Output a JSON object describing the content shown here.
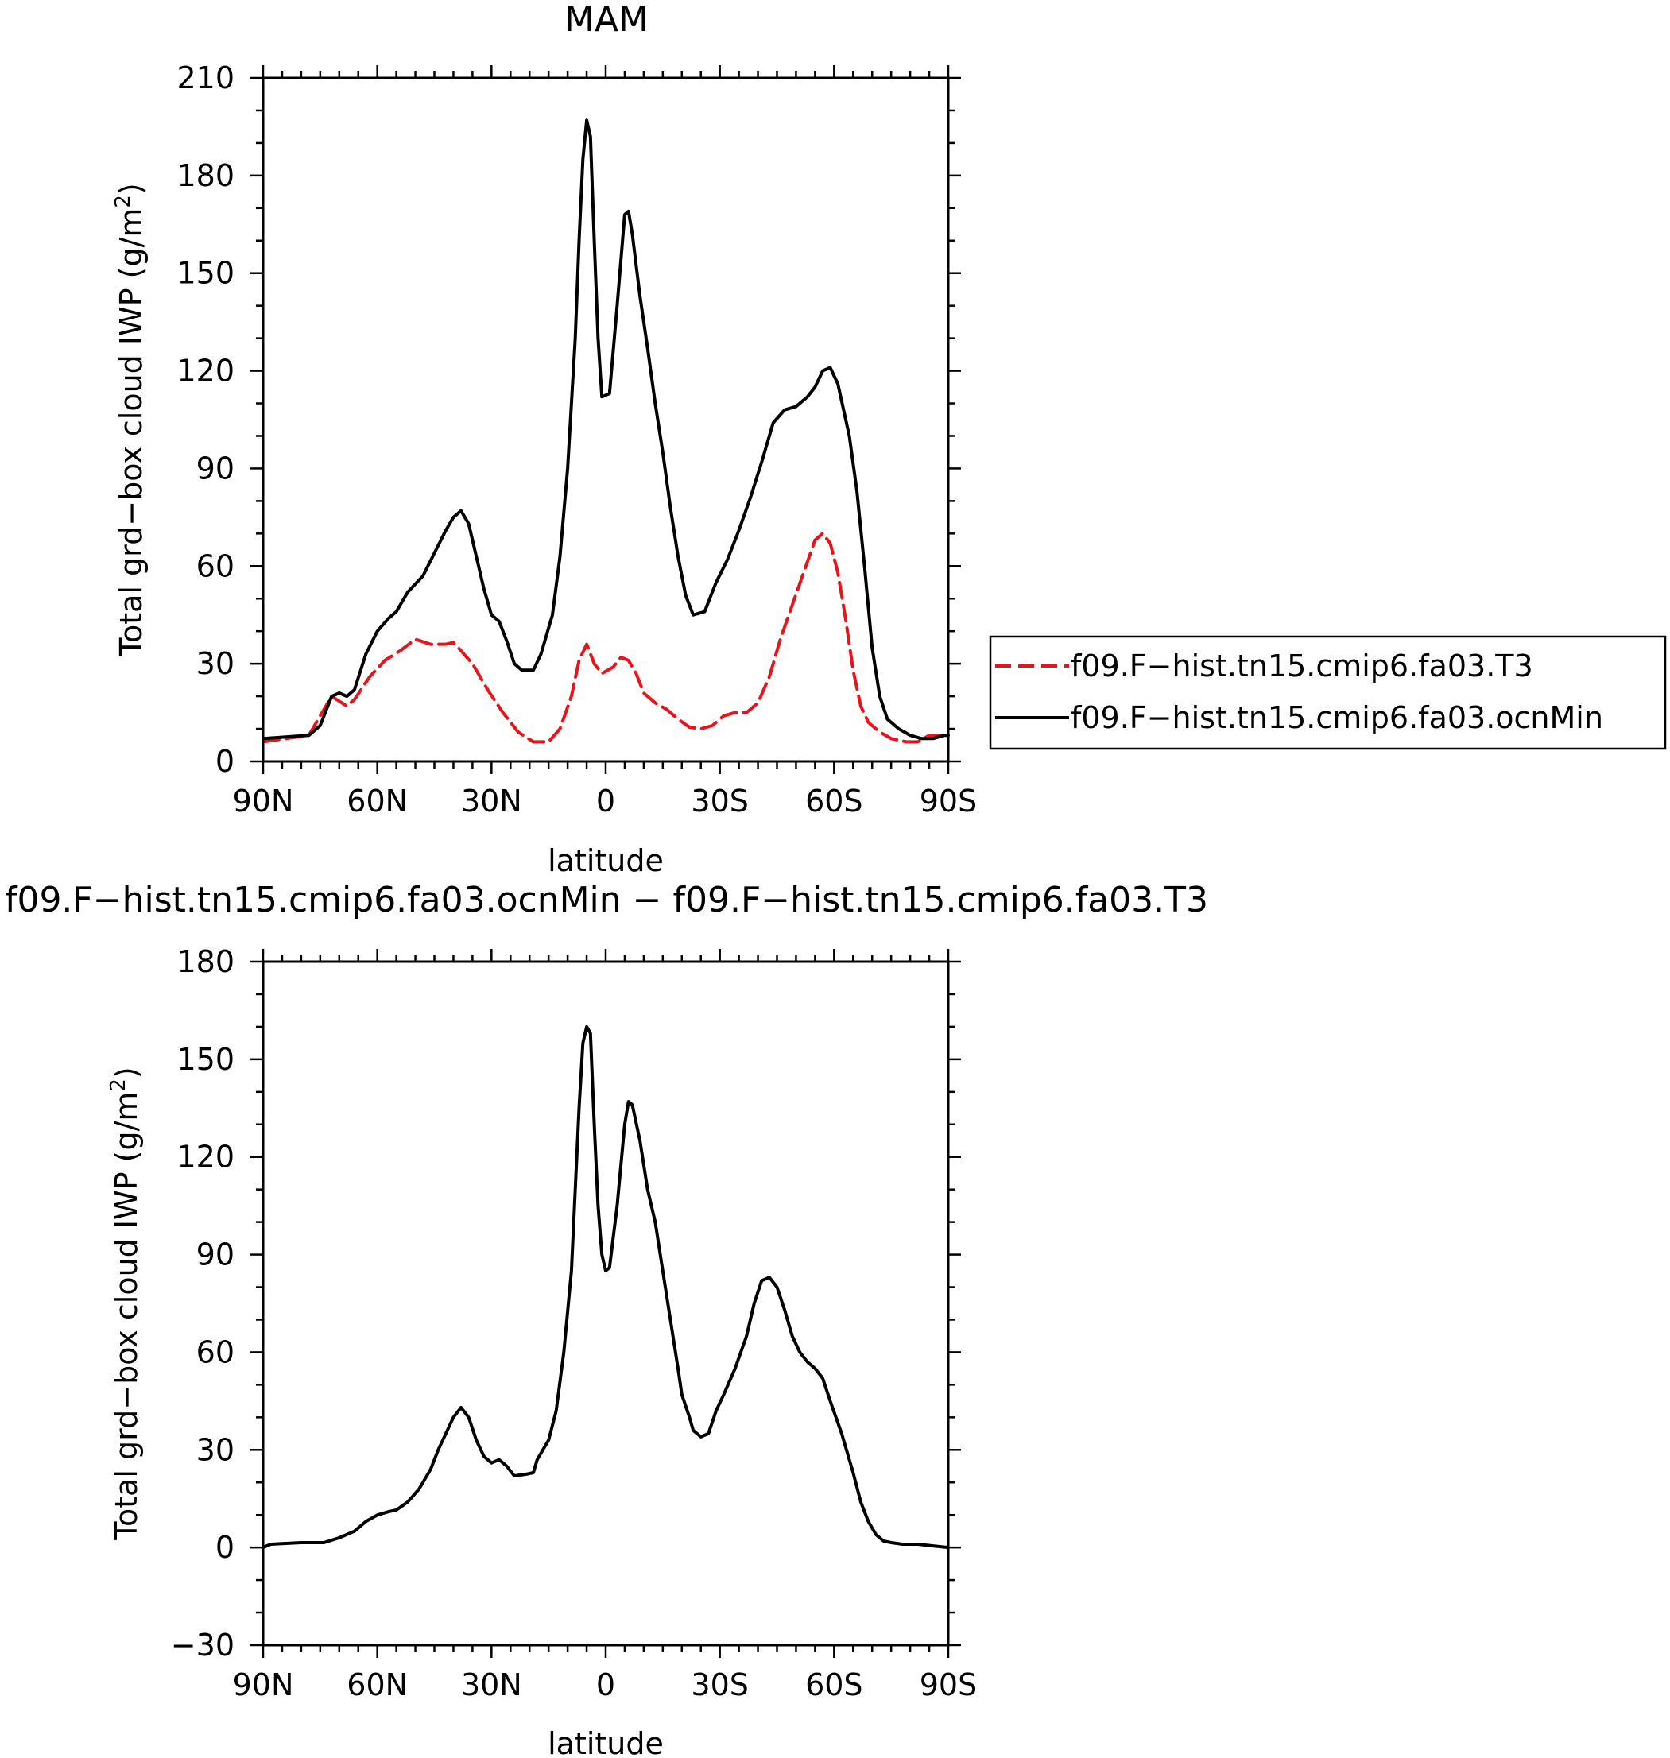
{
  "chart_data": [
    {
      "type": "line",
      "title": "MAM",
      "xlabel": "latitude",
      "ylabel": "Total grd−box cloud IWP (g/m",
      "ylabel_sup": "2",
      "ylabel_close": ")",
      "x_ticks": [
        -90,
        -60,
        -30,
        0,
        30,
        60,
        90
      ],
      "x_tick_labels": [
        "90N",
        "60N",
        "30N",
        "0",
        "30S",
        "60S",
        "90S"
      ],
      "xlim": [
        -90,
        90
      ],
      "ylim": [
        0,
        210
      ],
      "y_ticks": [
        0,
        30,
        60,
        90,
        120,
        150,
        180,
        210
      ],
      "y_tick_labels": [
        "0",
        "30",
        "60",
        "90",
        "120",
        "150",
        "180",
        "210"
      ],
      "grid": false,
      "legend_position": "right",
      "series": [
        {
          "name": "f09.F−hist.tn15.cmip6.fa03.T3",
          "color": "#e8141b",
          "dash": "dashed",
          "points": [
            [
              -90,
              6
            ],
            [
              -84,
              7
            ],
            [
              -78,
              8
            ],
            [
              -76,
              12
            ],
            [
              -72,
              20
            ],
            [
              -68,
              17
            ],
            [
              -66,
              19
            ],
            [
              -62,
              26
            ],
            [
              -58,
              31
            ],
            [
              -54,
              34
            ],
            [
              -50,
              37.5
            ],
            [
              -46,
              36
            ],
            [
              -42,
              36
            ],
            [
              -40,
              36.5
            ],
            [
              -38,
              34
            ],
            [
              -35,
              30
            ],
            [
              -31,
              22
            ],
            [
              -27,
              15
            ],
            [
              -23,
              9
            ],
            [
              -19,
              6
            ],
            [
              -15,
              6
            ],
            [
              -12,
              10
            ],
            [
              -9,
              20
            ],
            [
              -7,
              31
            ],
            [
              -5,
              36
            ],
            [
              -3,
              30
            ],
            [
              -1,
              27
            ],
            [
              2,
              29
            ],
            [
              4,
              32
            ],
            [
              6,
              31
            ],
            [
              8,
              27
            ],
            [
              10,
              21
            ],
            [
              13,
              18
            ],
            [
              16,
              16
            ],
            [
              19,
              13
            ],
            [
              22,
              10.5
            ],
            [
              25,
              10
            ],
            [
              28,
              11
            ],
            [
              31,
              14
            ],
            [
              34,
              15
            ],
            [
              37,
              15
            ],
            [
              40,
              18
            ],
            [
              43,
              26
            ],
            [
              46,
              38
            ],
            [
              49,
              48
            ],
            [
              52,
              58
            ],
            [
              55,
              68
            ],
            [
              57,
              70
            ],
            [
              59,
              67
            ],
            [
              61,
              58
            ],
            [
              63,
              44
            ],
            [
              65,
              28
            ],
            [
              67,
              17
            ],
            [
              69,
              12
            ],
            [
              72,
              9
            ],
            [
              75,
              7
            ],
            [
              79,
              6
            ],
            [
              82,
              6
            ],
            [
              85,
              8
            ],
            [
              88,
              8
            ],
            [
              90,
              8
            ]
          ]
        },
        {
          "name": "f09.F−hist.tn15.cmip6.fa03.ocnMin",
          "color": "#000000",
          "dash": "solid",
          "points": [
            [
              -90,
              7
            ],
            [
              -84,
              7.5
            ],
            [
              -78,
              8
            ],
            [
              -75,
              11
            ],
            [
              -72,
              20
            ],
            [
              -70,
              21
            ],
            [
              -68,
              20
            ],
            [
              -66,
              22
            ],
            [
              -63,
              33
            ],
            [
              -60,
              40
            ],
            [
              -57,
              44
            ],
            [
              -55,
              46
            ],
            [
              -52,
              52
            ],
            [
              -48,
              57
            ],
            [
              -45,
              64
            ],
            [
              -42,
              71
            ],
            [
              -40,
              75
            ],
            [
              -38,
              77
            ],
            [
              -36,
              73
            ],
            [
              -34,
              63
            ],
            [
              -32,
              53
            ],
            [
              -30,
              45
            ],
            [
              -28,
              43
            ],
            [
              -26,
              37
            ],
            [
              -24,
              30
            ],
            [
              -22,
              28
            ],
            [
              -19,
              28
            ],
            [
              -17,
              33
            ],
            [
              -14,
              45
            ],
            [
              -12,
              63
            ],
            [
              -10,
              90
            ],
            [
              -8,
              130
            ],
            [
              -7,
              160
            ],
            [
              -6,
              185
            ],
            [
              -5,
              197
            ],
            [
              -4,
              192
            ],
            [
              -3,
              160
            ],
            [
              -2,
              130
            ],
            [
              -1,
              112
            ],
            [
              1,
              113
            ],
            [
              3,
              140
            ],
            [
              5,
              168
            ],
            [
              6,
              169
            ],
            [
              7,
              162
            ],
            [
              9,
              143
            ],
            [
              11,
              127
            ],
            [
              13,
              110
            ],
            [
              15,
              95
            ],
            [
              17,
              78
            ],
            [
              19,
              63
            ],
            [
              21,
              51
            ],
            [
              23,
              45
            ],
            [
              26,
              46
            ],
            [
              29,
              55
            ],
            [
              32,
              62
            ],
            [
              35,
              71
            ],
            [
              38,
              81
            ],
            [
              41,
              92
            ],
            [
              44,
              104
            ],
            [
              47,
              108
            ],
            [
              50,
              109
            ],
            [
              53,
              112
            ],
            [
              55,
              115
            ],
            [
              57,
              120
            ],
            [
              59,
              121
            ],
            [
              61,
              116
            ],
            [
              64,
              100
            ],
            [
              66,
              83
            ],
            [
              68,
              60
            ],
            [
              70,
              35
            ],
            [
              72,
              20
            ],
            [
              74,
              13
            ],
            [
              77,
              10
            ],
            [
              80,
              8
            ],
            [
              83,
              7
            ],
            [
              86,
              7
            ],
            [
              89,
              8
            ],
            [
              90,
              8
            ]
          ]
        }
      ]
    },
    {
      "type": "line",
      "title": "f09.F−hist.tn15.cmip6.fa03.ocnMin  −  f09.F−hist.tn15.cmip6.fa03.T3",
      "xlabel": "latitude",
      "ylabel": "Total grd−box cloud IWP (g/m",
      "ylabel_sup": "2",
      "ylabel_close": ")",
      "x_ticks": [
        -90,
        -60,
        -30,
        0,
        30,
        60,
        90
      ],
      "x_tick_labels": [
        "90N",
        "60N",
        "30N",
        "0",
        "30S",
        "60S",
        "90S"
      ],
      "xlim": [
        -90,
        90
      ],
      "ylim": [
        -30,
        180
      ],
      "y_ticks": [
        -30,
        0,
        30,
        60,
        90,
        120,
        150,
        180
      ],
      "y_tick_labels": [
        "−30",
        "0",
        "30",
        "60",
        "90",
        "120",
        "150",
        "180"
      ],
      "grid": false,
      "series": [
        {
          "color": "#000000",
          "dash": "solid",
          "points": [
            [
              -90,
              0
            ],
            [
              -88,
              1
            ],
            [
              -80,
              1.5
            ],
            [
              -74,
              1.5
            ],
            [
              -70,
              3
            ],
            [
              -66,
              5
            ],
            [
              -63,
              8
            ],
            [
              -60,
              10
            ],
            [
              -57,
              11
            ],
            [
              -55,
              11.5
            ],
            [
              -52,
              14
            ],
            [
              -49,
              18
            ],
            [
              -46,
              24
            ],
            [
              -44,
              30
            ],
            [
              -42,
              35
            ],
            [
              -40,
              40
            ],
            [
              -38,
              43
            ],
            [
              -36,
              40
            ],
            [
              -34,
              33
            ],
            [
              -32,
              28
            ],
            [
              -30,
              26
            ],
            [
              -28,
              27
            ],
            [
              -26,
              25
            ],
            [
              -24,
              22
            ],
            [
              -21,
              22.5
            ],
            [
              -19,
              23
            ],
            [
              -18,
              27
            ],
            [
              -15,
              33
            ],
            [
              -13,
              42
            ],
            [
              -11,
              60
            ],
            [
              -9,
              85
            ],
            [
              -8,
              110
            ],
            [
              -7,
              135
            ],
            [
              -6,
              155
            ],
            [
              -5,
              160
            ],
            [
              -4,
              158
            ],
            [
              -3,
              130
            ],
            [
              -2,
              105
            ],
            [
              -1,
              90
            ],
            [
              0,
              85
            ],
            [
              1,
              86
            ],
            [
              3,
              105
            ],
            [
              5,
              130
            ],
            [
              6,
              137
            ],
            [
              7,
              136
            ],
            [
              9,
              125
            ],
            [
              11,
              110
            ],
            [
              13,
              100
            ],
            [
              15,
              85
            ],
            [
              17,
              70
            ],
            [
              19,
              55
            ],
            [
              20,
              47
            ],
            [
              22,
              40
            ],
            [
              23,
              36
            ],
            [
              25,
              34
            ],
            [
              27,
              35
            ],
            [
              29,
              42
            ],
            [
              31,
              47
            ],
            [
              34,
              55
            ],
            [
              37,
              65
            ],
            [
              39,
              75
            ],
            [
              41,
              82
            ],
            [
              43,
              83
            ],
            [
              45,
              80
            ],
            [
              47,
              73
            ],
            [
              49,
              65
            ],
            [
              51,
              60
            ],
            [
              53,
              57
            ],
            [
              55,
              55
            ],
            [
              57,
              52
            ],
            [
              59,
              45
            ],
            [
              62,
              35
            ],
            [
              65,
              23
            ],
            [
              67,
              14
            ],
            [
              69,
              8
            ],
            [
              71,
              4
            ],
            [
              73,
              2
            ],
            [
              75,
              1.5
            ],
            [
              78,
              1
            ],
            [
              82,
              1
            ],
            [
              86,
              0.5
            ],
            [
              90,
              0
            ]
          ]
        }
      ]
    }
  ]
}
